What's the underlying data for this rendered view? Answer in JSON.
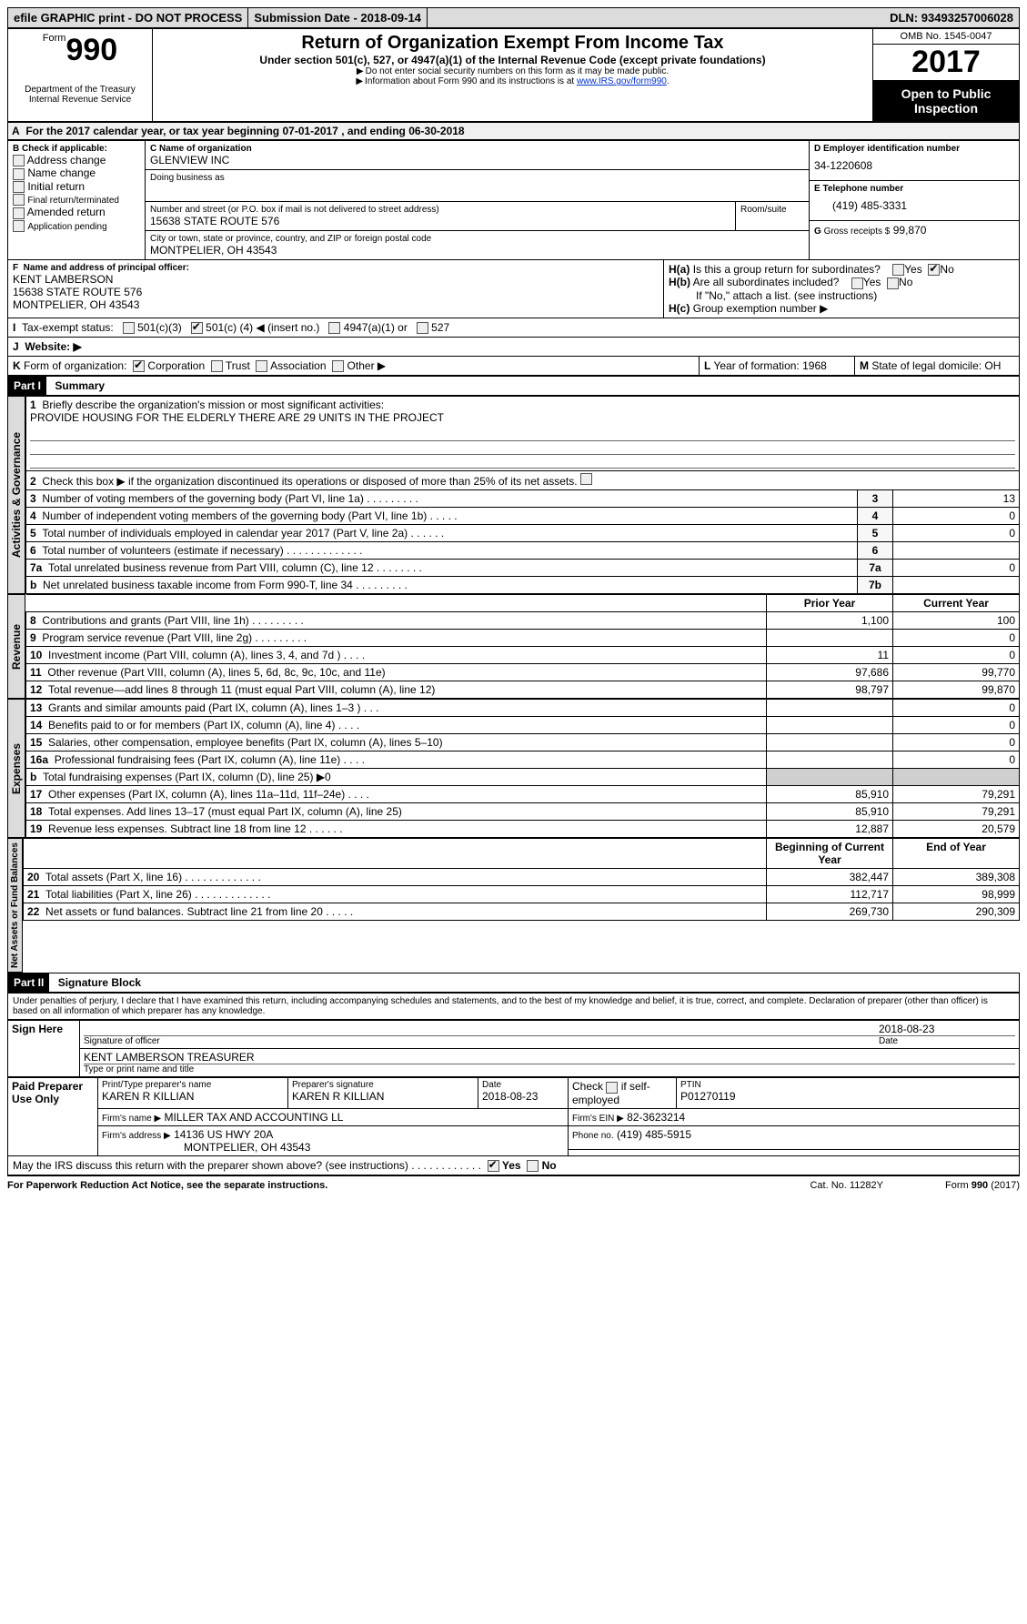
{
  "topbar": {
    "efile": "efile GRAPHIC print - DO NOT PROCESS",
    "subdate_label": "Submission Date -",
    "subdate": "2018-09-14",
    "dln_label": "DLN:",
    "dln": "93493257006028"
  },
  "header": {
    "form_word": "Form",
    "form_no": "990",
    "dept1": "Department of the Treasury",
    "dept2": "Internal Revenue Service",
    "title": "Return of Organization Exempt From Income Tax",
    "subtitle": "Under section 501(c), 527, or 4947(a)(1) of the Internal Revenue Code (except private foundations)",
    "note1": "Do not enter social security numbers on this form as it may be made public.",
    "note2_pre": "Information about Form 990 and its instructions is at ",
    "note2_link": "www.IRS.gov/form990",
    "omb": "OMB No. 1545-0047",
    "year": "2017",
    "open": "Open to Public Inspection"
  },
  "sectionA": {
    "text_pre": "For the 2017 calendar year, or tax year beginning ",
    "begin": "07-01-2017",
    "mid": " , and ending ",
    "end": "06-30-2018"
  },
  "sectionB": {
    "label": "Check if applicable:",
    "opts": [
      "Address change",
      "Name change",
      "Initial return",
      "Final return/terminated",
      "Amended return",
      "Application pending"
    ]
  },
  "sectionC": {
    "name_lbl": "Name of organization",
    "name": "GLENVIEW INC",
    "dba_lbl": "Doing business as",
    "addr_lbl": "Number and street (or P.O. box if mail is not delivered to street address)",
    "room_lbl": "Room/suite",
    "addr": "15638 STATE ROUTE 576",
    "city_lbl": "City or town, state or province, country, and ZIP or foreign postal code",
    "city": "MONTPELIER, OH  43543"
  },
  "sectionD": {
    "lbl": "Employer identification number",
    "val": "34-1220608"
  },
  "sectionE": {
    "lbl": "Telephone number",
    "val": "(419) 485-3331"
  },
  "sectionG": {
    "lbl": "Gross receipts $",
    "val": "99,870"
  },
  "sectionF": {
    "lbl": "Name and address of principal officer:",
    "name": "KENT LAMBERSON",
    "addr1": "15638 STATE ROUTE 576",
    "addr2": "MONTPELIER, OH  43543"
  },
  "sectionH": {
    "a": "Is this a group return for subordinates?",
    "yes": "Yes",
    "no": "No",
    "b": "Are all subordinates included?",
    "b_note": "If \"No,\" attach a list. (see instructions)",
    "c": "Group exemption number ▶"
  },
  "sectionI": {
    "lbl": "Tax-exempt status:",
    "o1": "501(c)(3)",
    "o2_pre": "501(c) (",
    "o2_num": "4",
    "o2_post": ") ◀ (insert no.)",
    "o3": "4947(a)(1) or",
    "o4": "527"
  },
  "sectionJ": {
    "lbl": "Website: ▶"
  },
  "sectionK": {
    "lbl": "Form of organization:",
    "opts": [
      "Corporation",
      "Trust",
      "Association",
      "Other ▶"
    ]
  },
  "sectionL": {
    "lbl": "Year of formation:",
    "val": "1968"
  },
  "sectionM": {
    "lbl": "State of legal domicile:",
    "val": "OH"
  },
  "part1": {
    "hdr": "Part I",
    "title": "Summary",
    "q1": "Briefly describe the organization's mission or most significant activities:",
    "q1_ans": "PROVIDE HOUSING FOR THE ELDERLY THERE ARE 29 UNITS IN THE PROJECT",
    "q2": "Check this box ▶        if the organization discontinued its operations or disposed of more than 25% of its net assets.",
    "rows_gov": [
      {
        "n": "3",
        "t": "Number of voting members of the governing body (Part VI, line 1a)  .    .    .    .    .    .    .    .    .",
        "c": "3",
        "v": "13"
      },
      {
        "n": "4",
        "t": "Number of independent voting members of the governing body (Part VI, line 1b)   .    .    .    .    .",
        "c": "4",
        "v": "0"
      },
      {
        "n": "5",
        "t": "Total number of individuals employed in calendar year 2017 (Part V, line 2a)   .    .    .    .    .    .",
        "c": "5",
        "v": "0"
      },
      {
        "n": "6",
        "t": "Total number of volunteers (estimate if necessary)   .    .    .    .    .    .    .    .    .    .    .    .    .",
        "c": "6",
        "v": ""
      },
      {
        "n": "7a",
        "t": "Total unrelated business revenue from Part VIII, column (C), line 12   .    .    .    .    .    .    .    .",
        "c": "7a",
        "v": "0"
      },
      {
        "n": "b",
        "t": "Net unrelated business taxable income from Form 990-T, line 34   .    .    .    .    .    .    .    .    .",
        "c": "7b",
        "v": ""
      }
    ],
    "col_py": "Prior Year",
    "col_cy": "Current Year",
    "rows_rev": [
      {
        "n": "8",
        "t": "Contributions and grants (Part VIII, line 1h)   .    .    .    .    .    .    .    .    .",
        "py": "1,100",
        "cy": "100"
      },
      {
        "n": "9",
        "t": "Program service revenue (Part VIII, line 2g)   .    .    .    .    .    .    .    .    .",
        "py": "",
        "cy": "0"
      },
      {
        "n": "10",
        "t": "Investment income (Part VIII, column (A), lines 3, 4, and 7d )   .    .    .    .",
        "py": "11",
        "cy": "0"
      },
      {
        "n": "11",
        "t": "Other revenue (Part VIII, column (A), lines 5, 6d, 8c, 9c, 10c, and 11e)",
        "py": "97,686",
        "cy": "99,770"
      },
      {
        "n": "12",
        "t": "Total revenue—add lines 8 through 11 (must equal Part VIII, column (A), line 12)",
        "py": "98,797",
        "cy": "99,870"
      }
    ],
    "rows_exp": [
      {
        "n": "13",
        "t": "Grants and similar amounts paid (Part IX, column (A), lines 1–3 )   .    .    .",
        "py": "",
        "cy": "0"
      },
      {
        "n": "14",
        "t": "Benefits paid to or for members (Part IX, column (A), line 4)   .    .    .    .",
        "py": "",
        "cy": "0"
      },
      {
        "n": "15",
        "t": "Salaries, other compensation, employee benefits (Part IX, column (A), lines 5–10)",
        "py": "",
        "cy": "0"
      },
      {
        "n": "16a",
        "t": "Professional fundraising fees (Part IX, column (A), line 11e)   .    .    .    .",
        "py": "",
        "cy": "0"
      },
      {
        "n": "b",
        "t": "Total fundraising expenses (Part IX, column (D), line 25) ▶0",
        "py": "shade",
        "cy": "shade"
      },
      {
        "n": "17",
        "t": "Other expenses (Part IX, column (A), lines 11a–11d, 11f–24e)   .    .    .    .",
        "py": "85,910",
        "cy": "79,291"
      },
      {
        "n": "18",
        "t": "Total expenses. Add lines 13–17 (must equal Part IX, column (A), line 25)",
        "py": "85,910",
        "cy": "79,291"
      },
      {
        "n": "19",
        "t": "Revenue less expenses. Subtract line 18 from line 12   .    .    .    .    .    .",
        "py": "12,887",
        "cy": "20,579"
      }
    ],
    "col_boy": "Beginning of Current Year",
    "col_eoy": "End of Year",
    "rows_net": [
      {
        "n": "20",
        "t": "Total assets (Part X, line 16)   .    .    .    .    .    .    .    .    .    .    .    .    .",
        "py": "382,447",
        "cy": "389,308"
      },
      {
        "n": "21",
        "t": "Total liabilities (Part X, line 26)   .    .    .    .    .    .    .    .    .    .    .    .    .",
        "py": "112,717",
        "cy": "98,999"
      },
      {
        "n": "22",
        "t": "Net assets or fund balances. Subtract line 21 from line 20   .    .    .    .    .",
        "py": "269,730",
        "cy": "290,309"
      }
    ]
  },
  "sidelabels": {
    "gov": "Activities & Governance",
    "rev": "Revenue",
    "exp": "Expenses",
    "net": "Net Assets or Fund Balances"
  },
  "part2": {
    "hdr": "Part II",
    "title": "Signature Block",
    "decl": "Under penalties of perjury, I declare that I have examined this return, including accompanying schedules and statements, and to the best of my knowledge and belief, it is true, correct, and complete. Declaration of preparer (other than officer) is based on all information of which preparer has any knowledge.",
    "sign_here": "Sign Here",
    "sig_off": "Signature of officer",
    "sig_date": "2018-08-23",
    "date_lbl": "Date",
    "name_title": "KENT LAMBERSON TREASURER",
    "name_lbl": "Type or print name and title",
    "paid": "Paid Preparer Use Only",
    "prep_name_lbl": "Print/Type preparer's name",
    "prep_name": "KAREN R KILLIAN",
    "prep_sig_lbl": "Preparer's signature",
    "prep_sig": "KAREN R KILLIAN",
    "prep_date_lbl": "Date",
    "prep_date": "2018-08-23",
    "self_emp": "Check        if self-employed",
    "ptin_lbl": "PTIN",
    "ptin": "P01270119",
    "firm_name_lbl": "Firm's name      ▶",
    "firm_name": "MILLER TAX AND ACCOUNTING LL",
    "firm_ein_lbl": "Firm's EIN ▶",
    "firm_ein": "82-3623214",
    "firm_addr_lbl": "Firm's address ▶",
    "firm_addr1": "14136 US HWY 20A",
    "firm_addr2": "MONTPELIER, OH 43543",
    "phone_lbl": "Phone no.",
    "phone": "(419) 485-5915",
    "discuss": "May the IRS discuss this return with the preparer shown above? (see instructions)   .    .    .    .    .    .    .    .    .    .    .    ."
  },
  "footer": {
    "left": "For Paperwork Reduction Act Notice, see the separate instructions.",
    "mid": "Cat. No. 11282Y",
    "right": "Form 990 (2017)"
  }
}
